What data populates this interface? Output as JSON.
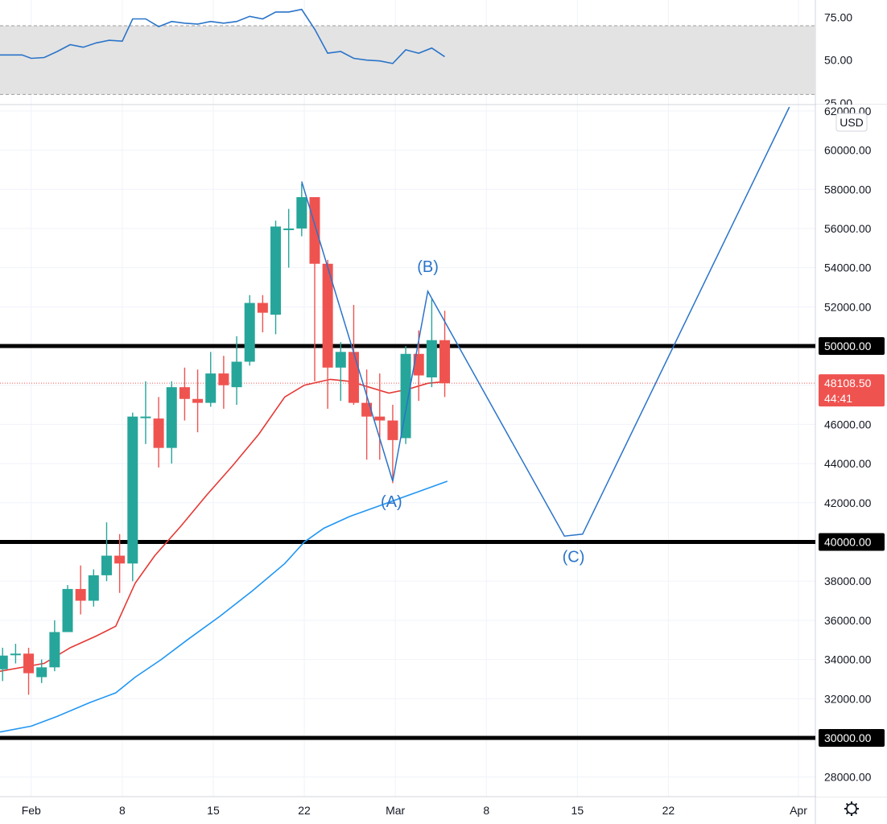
{
  "chart_data": {
    "type": "candlestick",
    "currency": "USD",
    "price_axis": {
      "ticks": [
        "28000.00",
        "30000.00",
        "32000.00",
        "34000.00",
        "36000.00",
        "38000.00",
        "40000.00",
        "42000.00",
        "44000.00",
        "46000.00",
        "48000.00",
        "50000.00",
        "52000.00",
        "54000.00",
        "56000.00",
        "58000.00",
        "60000.00",
        "62000.00"
      ],
      "range": [
        27000,
        62200
      ]
    },
    "date_axis": {
      "ticks": [
        {
          "label": "Feb",
          "day": 32
        },
        {
          "label": "8",
          "day": 39
        },
        {
          "label": "15",
          "day": 46
        },
        {
          "label": "22",
          "day": 53
        },
        {
          "label": "Mar",
          "day": 60
        },
        {
          "label": "8",
          "day": 67
        },
        {
          "label": "15",
          "day": 74
        },
        {
          "label": "22",
          "day": 81
        },
        {
          "label": "Apr",
          "day": 91
        }
      ],
      "day_range": [
        29.6,
        92.3
      ]
    },
    "candles": [
      {
        "day": 29.8,
        "o": 33500,
        "h": 34600,
        "l": 32900,
        "c": 34200
      },
      {
        "day": 30.8,
        "o": 34300,
        "h": 34800,
        "l": 33800,
        "c": 34300
      },
      {
        "day": 31.8,
        "o": 34300,
        "h": 34600,
        "l": 32200,
        "c": 33300
      },
      {
        "day": 32.8,
        "o": 33100,
        "h": 34000,
        "l": 32800,
        "c": 33600
      },
      {
        "day": 33.8,
        "o": 33600,
        "h": 36000,
        "l": 33400,
        "c": 35400
      },
      {
        "day": 34.8,
        "o": 35400,
        "h": 37800,
        "l": 35400,
        "c": 37600
      },
      {
        "day": 35.8,
        "o": 37600,
        "h": 38800,
        "l": 36300,
        "c": 37000
      },
      {
        "day": 36.8,
        "o": 37000,
        "h": 38600,
        "l": 36700,
        "c": 38300
      },
      {
        "day": 37.8,
        "o": 38300,
        "h": 41000,
        "l": 38000,
        "c": 39300
      },
      {
        "day": 38.8,
        "o": 39300,
        "h": 40400,
        "l": 37400,
        "c": 38900
      },
      {
        "day": 39.8,
        "o": 38900,
        "h": 46600,
        "l": 38000,
        "c": 46400
      },
      {
        "day": 40.8,
        "o": 46400,
        "h": 48200,
        "l": 45000,
        "c": 46400
      },
      {
        "day": 41.8,
        "o": 46300,
        "h": 47400,
        "l": 43800,
        "c": 44800
      },
      {
        "day": 42.8,
        "o": 44800,
        "h": 48200,
        "l": 44000,
        "c": 47900
      },
      {
        "day": 43.8,
        "o": 47900,
        "h": 48900,
        "l": 46200,
        "c": 47300
      },
      {
        "day": 44.8,
        "o": 47300,
        "h": 48800,
        "l": 45600,
        "c": 47100
      },
      {
        "day": 45.8,
        "o": 47100,
        "h": 49700,
        "l": 46900,
        "c": 48600
      },
      {
        "day": 46.8,
        "o": 48600,
        "h": 49500,
        "l": 46800,
        "c": 48000
      },
      {
        "day": 47.8,
        "o": 47900,
        "h": 50500,
        "l": 47000,
        "c": 49200
      },
      {
        "day": 48.8,
        "o": 49200,
        "h": 52600,
        "l": 49000,
        "c": 52200
      },
      {
        "day": 49.8,
        "o": 52200,
        "h": 52600,
        "l": 50700,
        "c": 51700
      },
      {
        "day": 50.8,
        "o": 51600,
        "h": 56400,
        "l": 50600,
        "c": 56100
      },
      {
        "day": 51.8,
        "o": 56000,
        "h": 57000,
        "l": 54000,
        "c": 56000
      },
      {
        "day": 52.8,
        "o": 56000,
        "h": 58300,
        "l": 55600,
        "c": 57600
      },
      {
        "day": 53.8,
        "o": 57600,
        "h": 57600,
        "l": 48200,
        "c": 54200
      },
      {
        "day": 54.8,
        "o": 54200,
        "h": 54400,
        "l": 46800,
        "c": 48900
      },
      {
        "day": 55.8,
        "o": 48900,
        "h": 50200,
        "l": 47200,
        "c": 49700
      },
      {
        "day": 56.8,
        "o": 49700,
        "h": 52100,
        "l": 47000,
        "c": 47100
      },
      {
        "day": 57.8,
        "o": 47100,
        "h": 48800,
        "l": 44200,
        "c": 46400
      },
      {
        "day": 58.8,
        "o": 46400,
        "h": 48600,
        "l": 44200,
        "c": 46200
      },
      {
        "day": 59.8,
        "o": 46200,
        "h": 47000,
        "l": 43000,
        "c": 45200
      },
      {
        "day": 60.8,
        "o": 45300,
        "h": 50000,
        "l": 45000,
        "c": 49600
      },
      {
        "day": 61.8,
        "o": 49600,
        "h": 50800,
        "l": 47200,
        "c": 48500
      },
      {
        "day": 62.8,
        "o": 48400,
        "h": 52400,
        "l": 47900,
        "c": 50300
      },
      {
        "day": 63.8,
        "o": 50300,
        "h": 51800,
        "l": 47400,
        "c": 48100
      }
    ],
    "ma_short": [
      {
        "day": 29.6,
        "v": 33400
      },
      {
        "day": 33.0,
        "v": 33800
      },
      {
        "day": 35.0,
        "v": 34600
      },
      {
        "day": 37.0,
        "v": 35200
      },
      {
        "day": 38.5,
        "v": 35700
      },
      {
        "day": 40.0,
        "v": 37900
      },
      {
        "day": 41.5,
        "v": 39300
      },
      {
        "day": 43.5,
        "v": 40800
      },
      {
        "day": 45.5,
        "v": 42400
      },
      {
        "day": 47.5,
        "v": 43900
      },
      {
        "day": 49.5,
        "v": 45500
      },
      {
        "day": 51.5,
        "v": 47400
      },
      {
        "day": 53.0,
        "v": 48000
      },
      {
        "day": 55.0,
        "v": 48300
      },
      {
        "day": 56.5,
        "v": 48200
      },
      {
        "day": 58.0,
        "v": 47900
      },
      {
        "day": 59.5,
        "v": 47600
      },
      {
        "day": 61.0,
        "v": 47800
      },
      {
        "day": 62.5,
        "v": 48100
      },
      {
        "day": 64.0,
        "v": 48200
      }
    ],
    "ma_long": [
      {
        "day": 29.6,
        "v": 30300
      },
      {
        "day": 32.0,
        "v": 30600
      },
      {
        "day": 34.0,
        "v": 31100
      },
      {
        "day": 36.5,
        "v": 31800
      },
      {
        "day": 38.5,
        "v": 32300
      },
      {
        "day": 40.0,
        "v": 33100
      },
      {
        "day": 42.0,
        "v": 34000
      },
      {
        "day": 44.0,
        "v": 35000
      },
      {
        "day": 46.5,
        "v": 36200
      },
      {
        "day": 49.0,
        "v": 37500
      },
      {
        "day": 51.5,
        "v": 38900
      },
      {
        "day": 53.0,
        "v": 40000
      },
      {
        "day": 54.5,
        "v": 40700
      },
      {
        "day": 56.5,
        "v": 41300
      },
      {
        "day": 59.0,
        "v": 41900
      },
      {
        "day": 61.5,
        "v": 42500
      },
      {
        "day": 64.0,
        "v": 43100
      }
    ],
    "levels": [
      {
        "price": 50000,
        "label": "50000.00"
      },
      {
        "price": 40000,
        "label": "40000.00"
      },
      {
        "price": 30000,
        "label": "30000.00"
      }
    ],
    "last_price": {
      "value": 48108.5,
      "label": "48108.50",
      "countdown": "44:41"
    },
    "projection": [
      {
        "day": 52.8,
        "v": 58400
      },
      {
        "day": 59.8,
        "v": 43100
      },
      {
        "day": 62.5,
        "v": 52800
      },
      {
        "day": 73.0,
        "v": 40300
      },
      {
        "day": 74.4,
        "v": 40400
      },
      {
        "day": 90.3,
        "v": 62200
      }
    ],
    "wave_labels": [
      {
        "text": "(A)",
        "day": 59.7,
        "v": 42000
      },
      {
        "text": "(B)",
        "day": 62.5,
        "v": 54000
      },
      {
        "text": "(C)",
        "day": 73.7,
        "v": 39200
      }
    ],
    "rsi": {
      "ticks": [
        "25.00",
        "50.00",
        "75.00"
      ],
      "range": [
        25,
        85
      ],
      "band": [
        30,
        70
      ],
      "values": [
        {
          "day": 29.6,
          "v": 53
        },
        {
          "day": 31.3,
          "v": 53
        },
        {
          "day": 32.0,
          "v": 51
        },
        {
          "day": 33.0,
          "v": 51.5
        },
        {
          "day": 34.0,
          "v": 55
        },
        {
          "day": 35.0,
          "v": 59
        },
        {
          "day": 36.0,
          "v": 57.5
        },
        {
          "day": 37.0,
          "v": 60
        },
        {
          "day": 38.0,
          "v": 61.5
        },
        {
          "day": 39.0,
          "v": 61
        },
        {
          "day": 39.8,
          "v": 74
        },
        {
          "day": 40.8,
          "v": 74
        },
        {
          "day": 41.8,
          "v": 69.5
        },
        {
          "day": 42.8,
          "v": 72.5
        },
        {
          "day": 43.8,
          "v": 71.5
        },
        {
          "day": 44.8,
          "v": 71
        },
        {
          "day": 45.8,
          "v": 72.5
        },
        {
          "day": 46.8,
          "v": 71.5
        },
        {
          "day": 47.8,
          "v": 72.5
        },
        {
          "day": 48.8,
          "v": 75.5
        },
        {
          "day": 49.8,
          "v": 74
        },
        {
          "day": 50.8,
          "v": 78
        },
        {
          "day": 51.8,
          "v": 78
        },
        {
          "day": 52.8,
          "v": 79.5
        },
        {
          "day": 53.8,
          "v": 68
        },
        {
          "day": 54.8,
          "v": 54
        },
        {
          "day": 55.8,
          "v": 55
        },
        {
          "day": 56.8,
          "v": 51
        },
        {
          "day": 57.8,
          "v": 50
        },
        {
          "day": 58.8,
          "v": 49.5
        },
        {
          "day": 59.8,
          "v": 48
        },
        {
          "day": 60.8,
          "v": 56
        },
        {
          "day": 61.8,
          "v": 54
        },
        {
          "day": 62.8,
          "v": 57
        },
        {
          "day": 63.8,
          "v": 52
        }
      ]
    },
    "colors": {
      "up": "#26a69a",
      "down": "#ef5350",
      "ma_short": "#e53935",
      "ma_long": "#2196f3",
      "projection": "#2a74c9",
      "rsi_line": "#2a74c9",
      "rsi_band": "#e3e3e3",
      "level_line": "#000000",
      "grid": "#f0f3fa",
      "text": "#131722"
    }
  }
}
